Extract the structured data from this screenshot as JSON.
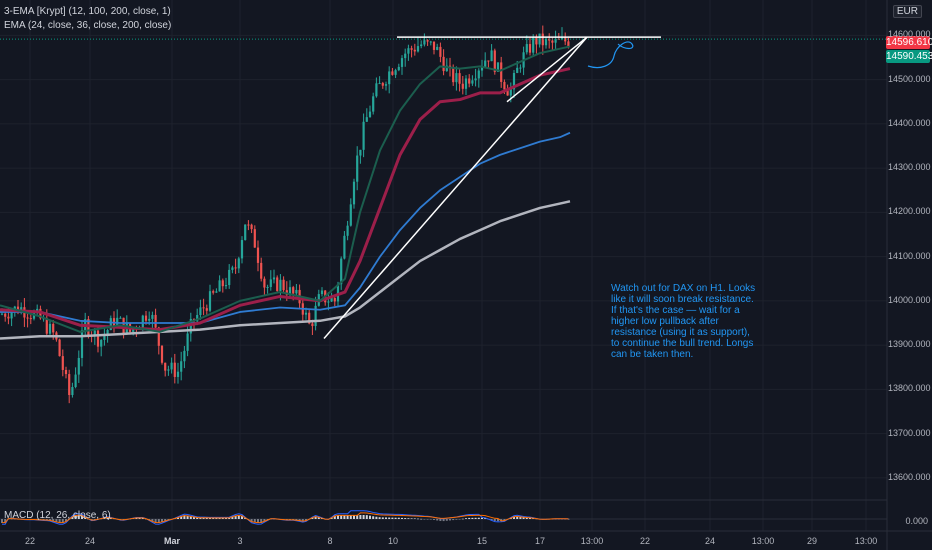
{
  "legend": {
    "line1": "3-EMA [Krypt] (12, 100, 200, close, 1)",
    "line2": "EMA (24, close, 36, close, 200, close)"
  },
  "currency": "EUR",
  "macd_label": "MACD (12, 26, close, 6)",
  "annotation": "Watch out for DAX on H1. Looks like it will soon break resistance. If that's the case — wait for a higher low pullback after resistance (using it as support), to continue the bull trend. Longs can be taken then.",
  "price_tags": [
    {
      "value": "14596.610",
      "color": "#f23645"
    },
    {
      "value": "14590.453",
      "color": "#089981"
    }
  ],
  "colors": {
    "up": "#26a69a",
    "down": "#ef5350",
    "ema_fast": "#1b5e4e",
    "ema_mid": "#9c1f4a",
    "ema_slow": "#2f7bd1",
    "ema_200": "#b2b5be",
    "drawings": "#ffffff",
    "cyan_sketch": "#2196f3"
  },
  "chart_data": {
    "type": "candlestick",
    "title": "",
    "ylim": [
      13550,
      14680
    ],
    "y_ticks": [
      "14600.000",
      "14500.000",
      "14400.000",
      "14300.000",
      "14200.000",
      "14100.000",
      "14000.000",
      "13900.000",
      "13800.000",
      "13700.000",
      "13600.000"
    ],
    "x_tick_labels": [
      "22",
      "24",
      "Mar",
      "3",
      "8",
      "10",
      "15",
      "17",
      "13:00",
      "22",
      "24",
      "13:00",
      "29",
      "13:00"
    ],
    "macd_tick": "0.000",
    "price_path": [
      [
        0,
        13970
      ],
      [
        20,
        13985
      ],
      [
        40,
        13960
      ],
      [
        55,
        13920
      ],
      [
        70,
        13780
      ],
      [
        85,
        13950
      ],
      [
        100,
        13910
      ],
      [
        115,
        13960
      ],
      [
        130,
        13930
      ],
      [
        150,
        13980
      ],
      [
        165,
        13850
      ],
      [
        178,
        13840
      ],
      [
        192,
        13950
      ],
      [
        205,
        13990
      ],
      [
        220,
        14030
      ],
      [
        235,
        14070
      ],
      [
        245,
        14180
      ],
      [
        255,
        14130
      ],
      [
        265,
        14030
      ],
      [
        280,
        14040
      ],
      [
        300,
        14000
      ],
      [
        310,
        13940
      ],
      [
        320,
        14010
      ],
      [
        335,
        14000
      ],
      [
        345,
        14150
      ],
      [
        355,
        14300
      ],
      [
        365,
        14400
      ],
      [
        375,
        14470
      ],
      [
        390,
        14520
      ],
      [
        405,
        14560
      ],
      [
        420,
        14580
      ],
      [
        435,
        14575
      ],
      [
        450,
        14510
      ],
      [
        462,
        14490
      ],
      [
        475,
        14520
      ],
      [
        490,
        14560
      ],
      [
        500,
        14510
      ],
      [
        510,
        14470
      ],
      [
        520,
        14540
      ],
      [
        535,
        14590
      ],
      [
        550,
        14580
      ],
      [
        560,
        14585
      ],
      [
        570,
        14590
      ]
    ],
    "ema_fast": [
      [
        0,
        13990
      ],
      [
        40,
        13965
      ],
      [
        80,
        13930
      ],
      [
        120,
        13945
      ],
      [
        160,
        13930
      ],
      [
        200,
        13960
      ],
      [
        240,
        14000
      ],
      [
        280,
        14020
      ],
      [
        320,
        14000
      ],
      [
        345,
        14050
      ],
      [
        360,
        14200
      ],
      [
        380,
        14340
      ],
      [
        400,
        14430
      ],
      [
        420,
        14490
      ],
      [
        440,
        14530
      ],
      [
        460,
        14525
      ],
      [
        480,
        14530
      ],
      [
        500,
        14520
      ],
      [
        520,
        14540
      ],
      [
        540,
        14560
      ],
      [
        560,
        14570
      ],
      [
        570,
        14575
      ]
    ],
    "ema_mid": [
      [
        0,
        13980
      ],
      [
        40,
        13975
      ],
      [
        80,
        13945
      ],
      [
        120,
        13940
      ],
      [
        160,
        13935
      ],
      [
        200,
        13950
      ],
      [
        240,
        13990
      ],
      [
        280,
        14010
      ],
      [
        320,
        14000
      ],
      [
        345,
        14020
      ],
      [
        360,
        14090
      ],
      [
        380,
        14210
      ],
      [
        400,
        14330
      ],
      [
        420,
        14410
      ],
      [
        440,
        14450
      ],
      [
        460,
        14455
      ],
      [
        480,
        14470
      ],
      [
        500,
        14470
      ],
      [
        520,
        14490
      ],
      [
        540,
        14510
      ],
      [
        560,
        14520
      ],
      [
        570,
        14525
      ]
    ],
    "ema_slow": [
      [
        0,
        13975
      ],
      [
        40,
        13975
      ],
      [
        80,
        13955
      ],
      [
        120,
        13950
      ],
      [
        160,
        13950
      ],
      [
        200,
        13950
      ],
      [
        240,
        13975
      ],
      [
        280,
        13985
      ],
      [
        320,
        13980
      ],
      [
        345,
        13990
      ],
      [
        360,
        14030
      ],
      [
        380,
        14100
      ],
      [
        400,
        14160
      ],
      [
        420,
        14210
      ],
      [
        440,
        14250
      ],
      [
        460,
        14280
      ],
      [
        480,
        14310
      ],
      [
        500,
        14330
      ],
      [
        520,
        14345
      ],
      [
        540,
        14360
      ],
      [
        560,
        14370
      ],
      [
        570,
        14380
      ]
    ],
    "ema_200": [
      [
        0,
        13915
      ],
      [
        40,
        13920
      ],
      [
        80,
        13920
      ],
      [
        120,
        13925
      ],
      [
        160,
        13930
      ],
      [
        200,
        13935
      ],
      [
        240,
        13945
      ],
      [
        280,
        13950
      ],
      [
        320,
        13955
      ],
      [
        345,
        13965
      ],
      [
        360,
        13985
      ],
      [
        380,
        14020
      ],
      [
        400,
        14055
      ],
      [
        420,
        14090
      ],
      [
        440,
        14115
      ],
      [
        460,
        14140
      ],
      [
        480,
        14160
      ],
      [
        500,
        14180
      ],
      [
        520,
        14195
      ],
      [
        540,
        14210
      ],
      [
        560,
        14220
      ],
      [
        570,
        14225
      ]
    ],
    "resistance_level": 14596,
    "macd_hist_amplitude": 1
  }
}
